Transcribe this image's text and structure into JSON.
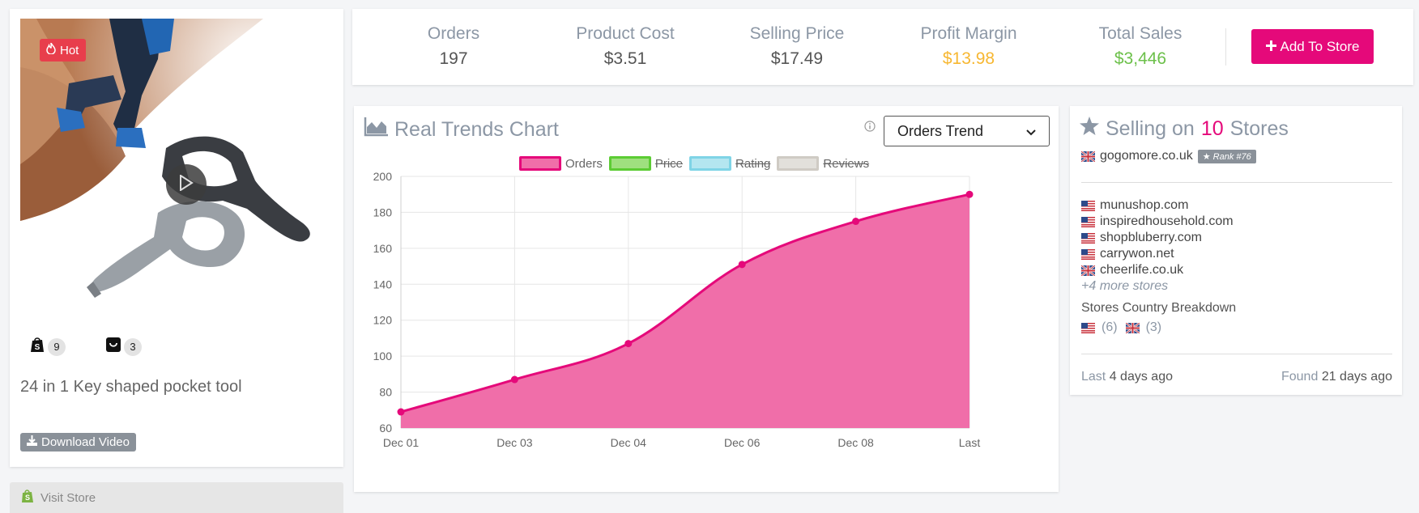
{
  "product": {
    "hot_label": "Hot",
    "shopify_count": "9",
    "other_count": "3",
    "title": "24 in 1 Key shaped pocket tool",
    "download_label": "Download Video",
    "visit_store_label": "Visit Store"
  },
  "stats": {
    "orders_label": "Orders",
    "orders_value": "197",
    "cost_label": "Product Cost",
    "cost_value": "$3.51",
    "price_label": "Selling Price",
    "price_value": "$17.49",
    "margin_label": "Profit Margin",
    "margin_value": "$13.98",
    "sales_label": "Total Sales",
    "sales_value": "$3,446",
    "add_button_label": "Add To Store",
    "colors": {
      "margin": "#f7b731",
      "sales": "#6cc04a",
      "accent": "#e5097a"
    }
  },
  "trends": {
    "title": "Real Trends Chart",
    "select_value": "Orders Trend",
    "legend": [
      {
        "label": "Orders",
        "color": "#e5097a",
        "fill": "#f06ea9",
        "active": true
      },
      {
        "label": "Price",
        "color": "#5ccc34",
        "fill": "#9fe07f",
        "active": false
      },
      {
        "label": "Rating",
        "color": "#7fd4e6",
        "fill": "#b4e6f0",
        "active": false
      },
      {
        "label": "Reviews",
        "color": "#cfcbc4",
        "fill": "#e2e0db",
        "active": false
      }
    ]
  },
  "chart_data": {
    "type": "area",
    "categories": [
      "Dec 01",
      "Dec 03",
      "Dec 04",
      "Dec 06",
      "Dec 08",
      "Last"
    ],
    "series": [
      {
        "name": "Orders",
        "values": [
          69,
          87,
          107,
          151,
          175,
          190
        ]
      }
    ],
    "y_ticks": [
      "200",
      "180",
      "160",
      "140",
      "120",
      "100",
      "80",
      "60"
    ],
    "ylim": [
      60,
      200
    ],
    "grid": true,
    "legend_position": "top"
  },
  "stores": {
    "title_prefix": "Selling on",
    "count": "10",
    "title_suffix": "Stores",
    "top_store": "gogomore.co.uk",
    "rank_label": "Rank #76",
    "list": [
      {
        "name": "munushop.com",
        "flag": "us"
      },
      {
        "name": "inspiredhousehold.com",
        "flag": "us"
      },
      {
        "name": "shopbluberry.com",
        "flag": "us"
      },
      {
        "name": "carrywon.net",
        "flag": "us"
      },
      {
        "name": "cheerlife.co.uk",
        "flag": "uk"
      }
    ],
    "more_label": "+4 more stores",
    "breakdown_label": "Stores Country Breakdown",
    "us_count": "(6)",
    "uk_count": "(3)",
    "last_label": "Last",
    "last_value": "4 days ago",
    "found_label": "Found",
    "found_value": "21 days ago"
  }
}
